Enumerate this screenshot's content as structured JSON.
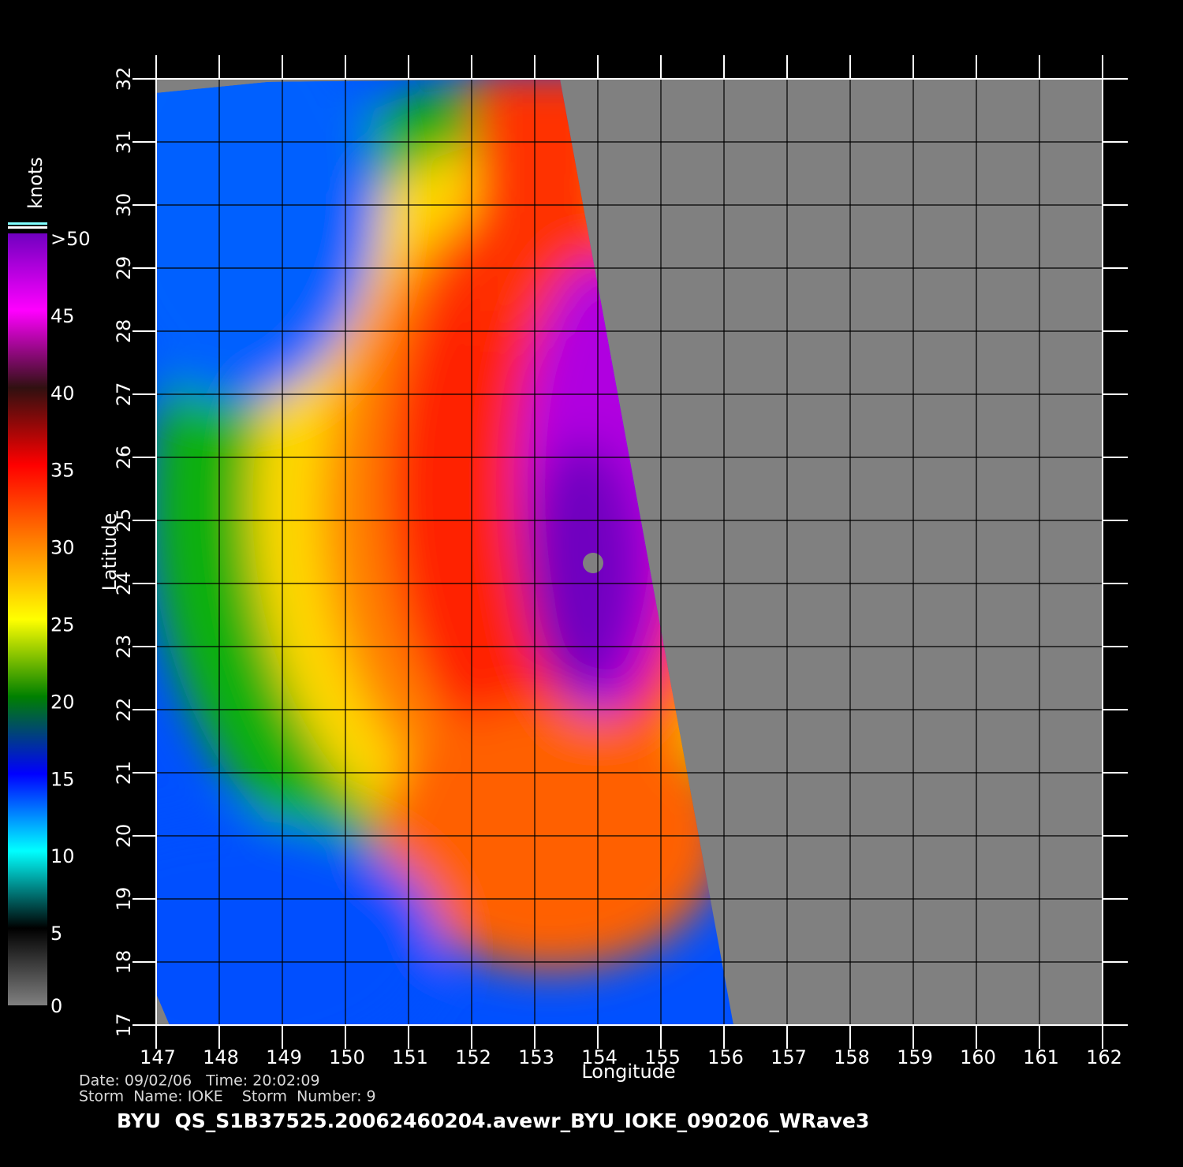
{
  "chart_data": {
    "type": "map",
    "xlabel": "Longitude",
    "ylabel": "Latitude",
    "xlim": [
      147,
      162
    ],
    "xticks": [
      147,
      148,
      149,
      150,
      151,
      152,
      153,
      154,
      155,
      156,
      157,
      158,
      159,
      160,
      161,
      162
    ],
    "ylim": [
      17,
      32
    ],
    "yticks": [
      17,
      18,
      19,
      20,
      21,
      22,
      23,
      24,
      25,
      26,
      27,
      28,
      29,
      30,
      31,
      32
    ],
    "grid": true,
    "colorbar": {
      "label": "knots",
      "ticks": [
        0,
        5,
        10,
        15,
        20,
        25,
        30,
        35,
        40,
        45,
        {
          "value": 50,
          "label": ">50"
        }
      ],
      "colors": [
        "#808080",
        "#000000",
        "#00ffff",
        "#0000ff",
        "#008000",
        "#ffff00",
        "#ff8000",
        "#ff0000",
        "#301010",
        "#ff00ff",
        "#7000c0"
      ]
    },
    "info": [
      "Date: 09/02/06   Time: 20:02:09",
      "Storm  Name: IOKE    Storm  Number: 9"
    ],
    "footer": "BYU  QS_S1B37525.20062460204.avewr_BYU_IOKE_090206_WRave3"
  }
}
